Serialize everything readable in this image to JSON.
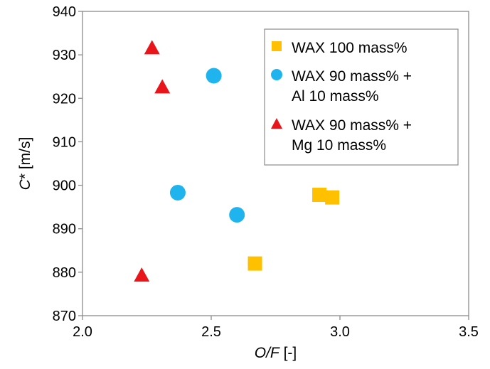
{
  "chart_data": {
    "type": "scatter",
    "title": "",
    "xlabel_italic": "O/F",
    "xlabel_unit": " [-]",
    "ylabel_italic": "C",
    "ylabel_unit": "* [m/s]",
    "xlim": [
      2.0,
      3.5
    ],
    "ylim": [
      870,
      940
    ],
    "xticks": [
      "2.0",
      "2.5",
      "3.0",
      "3.5"
    ],
    "yticks": [
      "870",
      "880",
      "890",
      "900",
      "910",
      "920",
      "930",
      "940"
    ],
    "grid": false,
    "legend_position": "top-right",
    "series": [
      {
        "name": "WAX 100 mass%",
        "legend_lines": [
          "WAX 100 mass%"
        ],
        "marker": "square",
        "color": "#ffc000",
        "points": [
          {
            "x": 2.67,
            "y": 882
          },
          {
            "x": 2.92,
            "y": 897.8
          },
          {
            "x": 2.97,
            "y": 897.2
          }
        ]
      },
      {
        "name": "WAX 90 mass% + Al 10 mass%",
        "legend_lines": [
          "WAX 90 mass% +",
          "Al 10 mass%"
        ],
        "marker": "circle",
        "color": "#1fb4ed",
        "points": [
          {
            "x": 2.51,
            "y": 925.2
          },
          {
            "x": 2.37,
            "y": 898.3
          },
          {
            "x": 2.6,
            "y": 893.2
          }
        ]
      },
      {
        "name": "WAX 90 mass% + Mg 10 mass%",
        "legend_lines": [
          "WAX 90 mass% +",
          "Mg 10 mass%"
        ],
        "marker": "triangle",
        "color": "#e8151b",
        "points": [
          {
            "x": 2.27,
            "y": 931.6
          },
          {
            "x": 2.31,
            "y": 922.6
          },
          {
            "x": 2.23,
            "y": 879.3
          }
        ]
      }
    ]
  }
}
